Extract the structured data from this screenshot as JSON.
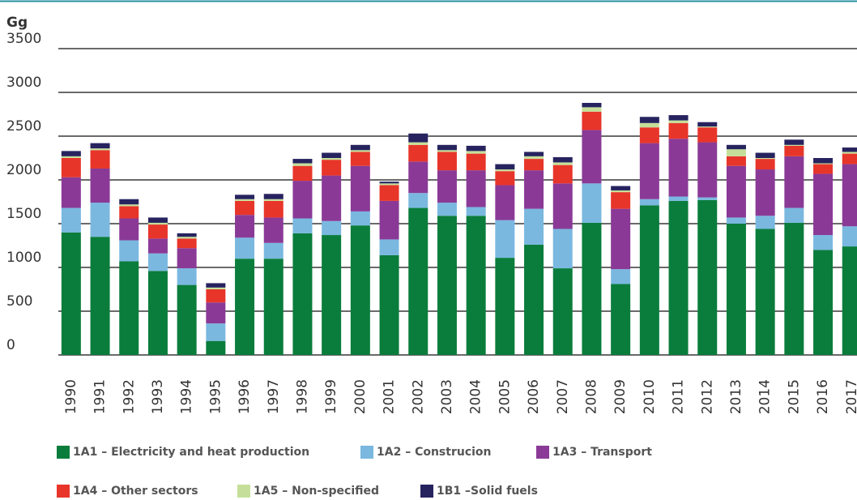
{
  "chart_data": {
    "type": "stacked_bar",
    "y_label": "Gg",
    "categories": [
      "1990",
      "1991",
      "1992",
      "1993",
      "1994",
      "1995",
      "1996",
      "1997",
      "1998",
      "1999",
      "2000",
      "2001",
      "2002",
      "2003",
      "2004",
      "2005",
      "2006",
      "2007",
      "2008",
      "2009",
      "2010",
      "2011",
      "2012",
      "2013",
      "2014",
      "2015",
      "2016",
      "2017"
    ],
    "series": [
      {
        "name": "1A1 – Electricity and heat production",
        "color": "#0a7d3c",
        "values": [
          1400,
          1350,
          1070,
          960,
          800,
          160,
          1100,
          1100,
          1390,
          1370,
          1480,
          1140,
          1680,
          1590,
          1590,
          1110,
          1260,
          990,
          1510,
          810,
          1710,
          1760,
          1770,
          1500,
          1440,
          1510,
          1200,
          1240
        ]
      },
      {
        "name": "1A2 – Construcion",
        "color": "#7ab8e0",
        "values": [
          280,
          390,
          240,
          200,
          190,
          200,
          240,
          180,
          170,
          160,
          160,
          180,
          170,
          150,
          100,
          430,
          410,
          450,
          450,
          170,
          70,
          50,
          30,
          70,
          150,
          170,
          170,
          230
        ]
      },
      {
        "name": "1A3 – Transport",
        "color": "#8a3a96",
        "values": [
          350,
          390,
          250,
          170,
          230,
          240,
          260,
          290,
          430,
          520,
          520,
          440,
          360,
          370,
          420,
          400,
          440,
          520,
          610,
          690,
          640,
          660,
          630,
          590,
          530,
          590,
          700,
          710
        ]
      },
      {
        "name": "1A4 – Other sectors",
        "color": "#e8352a",
        "values": [
          220,
          210,
          140,
          160,
          110,
          150,
          160,
          190,
          170,
          180,
          160,
          180,
          190,
          210,
          190,
          160,
          130,
          210,
          210,
          190,
          180,
          180,
          170,
          110,
          120,
          120,
          110,
          120
        ]
      },
      {
        "name": "1A5 – Non-specified",
        "color": "#c5df9a",
        "values": [
          20,
          20,
          20,
          20,
          20,
          20,
          20,
          20,
          30,
          20,
          20,
          20,
          30,
          20,
          30,
          20,
          30,
          30,
          50,
          20,
          50,
          30,
          10,
          80,
          10,
          10,
          10,
          20
        ]
      },
      {
        "name": "1B1 –Solid fuels",
        "color": "#27235f",
        "values": [
          60,
          60,
          60,
          60,
          40,
          50,
          50,
          60,
          50,
          60,
          60,
          20,
          100,
          60,
          60,
          60,
          50,
          60,
          50,
          50,
          70,
          60,
          50,
          50,
          60,
          60,
          60,
          50
        ]
      }
    ],
    "ylim": [
      0,
      3500
    ],
    "yticks": [
      0,
      500,
      1000,
      1500,
      2000,
      2500,
      3000,
      3500
    ],
    "grid": true
  }
}
